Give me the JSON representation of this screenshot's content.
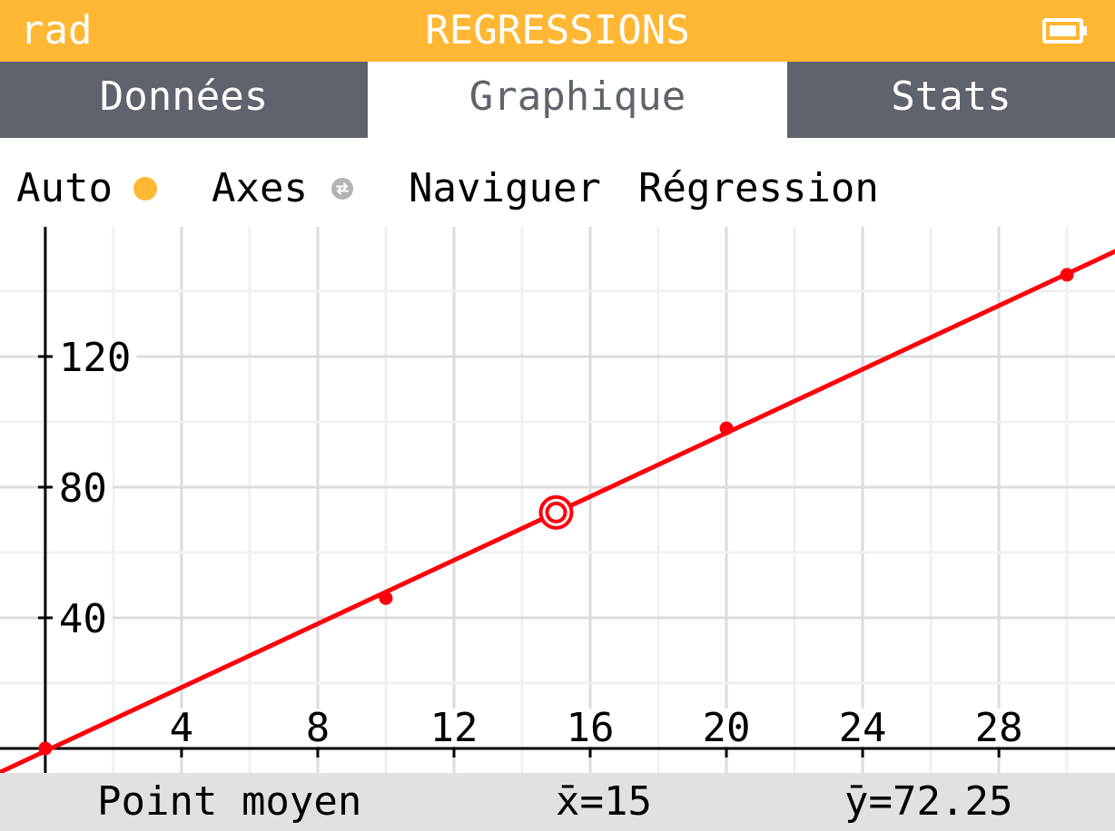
{
  "status_bar": {
    "angle_unit": "rad",
    "title": "REGRESSIONS",
    "battery_icon": "battery-icon"
  },
  "tabs": [
    {
      "label": "Données",
      "selected": false
    },
    {
      "label": "Graphique",
      "selected": true
    },
    {
      "label": "Stats",
      "selected": false
    }
  ],
  "toolbar": {
    "auto": {
      "label": "Auto",
      "icon": "status-dot-icon",
      "enabled": true
    },
    "axes": {
      "label": "Axes",
      "icon": "arrows-circle-icon"
    },
    "navigate": {
      "label": "Naviguer"
    },
    "regression": {
      "label": "Régression"
    }
  },
  "colors": {
    "title_bar": "#FFB734",
    "tab_bar": "#5F646C",
    "curve": "#FF000C",
    "banner": "#E3E0E4",
    "auto_indicator": "#FFB734",
    "axes_indicator": "#B4B4B4",
    "grid_major": "#DCDCDC",
    "grid_minor": "#F0F0F0",
    "axis": "#000000"
  },
  "chart_data": {
    "type": "scatter",
    "x": [
      0,
      10,
      20,
      30
    ],
    "y": [
      0,
      46,
      98,
      145
    ],
    "fit": "linear",
    "mean_point": {
      "x": 15,
      "y": 72.25
    },
    "xlim": [
      -1.33,
      31.41
    ],
    "ylim": [
      -7.5,
      159.7
    ],
    "x_ticks": [
      4,
      8,
      12,
      16,
      20,
      24,
      28
    ],
    "y_ticks": [
      40,
      80,
      120
    ],
    "grid": true,
    "grid_step": {
      "x": 2,
      "y": 20
    }
  },
  "banner": {
    "label": "Point moyen",
    "mean_x": "x̄=15",
    "mean_y": "ȳ=72.25"
  }
}
